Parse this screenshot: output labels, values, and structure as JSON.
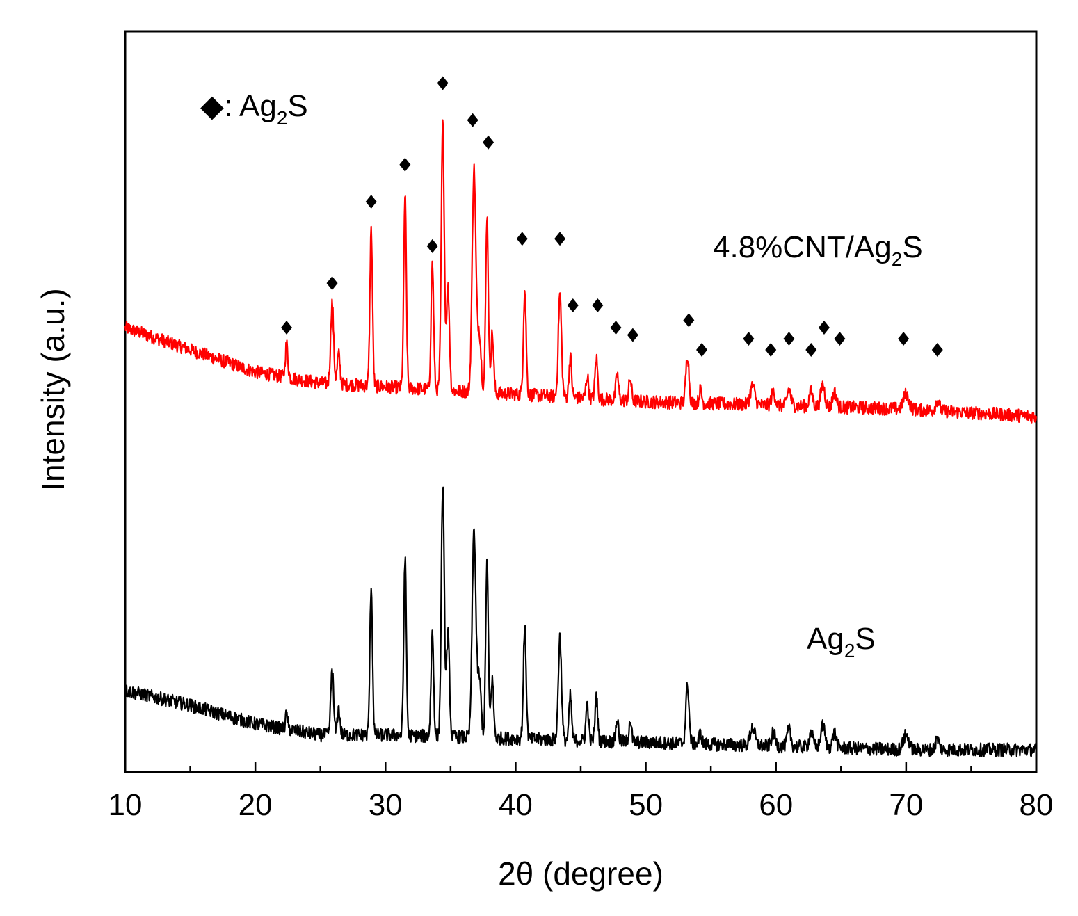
{
  "chart_data": {
    "type": "line",
    "title": "",
    "xlabel": "2θ (degree)",
    "ylabel": "Intensity (a.u.)",
    "xlim": [
      10,
      80
    ],
    "ylim": [
      0,
      100
    ],
    "xticks": [
      "10",
      "20",
      "30",
      "40",
      "50",
      "60",
      "70",
      "80"
    ],
    "yticks_shown": false,
    "grid": false,
    "legend": {
      "position": "top-left",
      "marker": "◆",
      "text_main": ": Ag",
      "text_sub": "2",
      "text_tail": "S"
    },
    "series": [
      {
        "name": "4.8%CNT/Ag2S",
        "label_main": "4.8%CNT/Ag",
        "label_sub": "2",
        "label_tail": "S",
        "color": "#ff0000",
        "baseline": [
          [
            10,
            60
          ],
          [
            15,
            57
          ],
          [
            20,
            54
          ],
          [
            25,
            52.5
          ],
          [
            30,
            52
          ],
          [
            40,
            51
          ],
          [
            50,
            50
          ],
          [
            60,
            49.5
          ],
          [
            70,
            49
          ],
          [
            80,
            48
          ]
        ],
        "peaks": [
          {
            "x": 22.4,
            "h": 4.5,
            "w": 0.14
          },
          {
            "x": 25.9,
            "h": 11,
            "w": 0.16
          },
          {
            "x": 26.4,
            "h": 4,
            "w": 0.15
          },
          {
            "x": 28.9,
            "h": 21,
            "w": 0.14
          },
          {
            "x": 31.5,
            "h": 26,
            "w": 0.14
          },
          {
            "x": 33.6,
            "h": 17,
            "w": 0.14
          },
          {
            "x": 34.4,
            "h": 36,
            "w": 0.16
          },
          {
            "x": 34.8,
            "h": 14,
            "w": 0.16
          },
          {
            "x": 36.8,
            "h": 30,
            "w": 0.2
          },
          {
            "x": 37.2,
            "h": 8,
            "w": 0.2
          },
          {
            "x": 37.8,
            "h": 24,
            "w": 0.14
          },
          {
            "x": 38.2,
            "h": 8,
            "w": 0.15
          },
          {
            "x": 40.7,
            "h": 14,
            "w": 0.15
          },
          {
            "x": 43.4,
            "h": 14,
            "w": 0.17
          },
          {
            "x": 44.2,
            "h": 5.5,
            "w": 0.14
          },
          {
            "x": 45.5,
            "h": 3,
            "w": 0.14
          },
          {
            "x": 46.2,
            "h": 5.5,
            "w": 0.14
          },
          {
            "x": 47.8,
            "h": 3.5,
            "w": 0.14
          },
          {
            "x": 48.8,
            "h": 3,
            "w": 0.14
          },
          {
            "x": 53.2,
            "h": 6.5,
            "w": 0.17
          },
          {
            "x": 54.2,
            "h": 1.8,
            "w": 0.14
          },
          {
            "x": 58.2,
            "h": 2.5,
            "w": 0.25
          },
          {
            "x": 59.8,
            "h": 1.8,
            "w": 0.2
          },
          {
            "x": 61.0,
            "h": 2.2,
            "w": 0.2
          },
          {
            "x": 62.7,
            "h": 2,
            "w": 0.2
          },
          {
            "x": 63.6,
            "h": 3,
            "w": 0.22
          },
          {
            "x": 64.5,
            "h": 2,
            "w": 0.2
          },
          {
            "x": 70.0,
            "h": 2,
            "w": 0.3
          },
          {
            "x": 72.4,
            "h": 1.5,
            "w": 0.2
          }
        ],
        "markers_x": [
          22.4,
          25.9,
          28.9,
          31.5,
          33.6,
          34.4,
          36.7,
          37.9,
          40.5,
          43.4,
          44.4,
          46.3,
          47.7,
          49.0,
          53.3,
          54.3,
          57.9,
          59.6,
          61.0,
          62.7,
          63.7,
          64.9,
          69.8,
          72.4
        ],
        "markers_y": [
          60,
          66,
          77,
          82,
          71,
          93,
          88,
          85,
          72,
          72,
          63,
          63,
          60,
          59,
          61,
          57,
          58.5,
          57,
          58.5,
          57,
          60,
          58.5,
          58.5,
          57
        ]
      },
      {
        "name": "Ag2S",
        "label_main": "Ag",
        "label_sub": "2",
        "label_tail": "S",
        "color": "#000000",
        "baseline": [
          [
            10,
            11
          ],
          [
            15,
            9
          ],
          [
            20,
            6.5
          ],
          [
            25,
            5
          ],
          [
            30,
            5
          ],
          [
            40,
            4.5
          ],
          [
            50,
            4
          ],
          [
            60,
            3.5
          ],
          [
            70,
            3
          ],
          [
            80,
            3
          ]
        ],
        "peaks": [
          {
            "x": 22.4,
            "h": 2,
            "w": 0.12
          },
          {
            "x": 25.9,
            "h": 9,
            "w": 0.15
          },
          {
            "x": 26.4,
            "h": 3.5,
            "w": 0.15
          },
          {
            "x": 28.9,
            "h": 20,
            "w": 0.14
          },
          {
            "x": 31.5,
            "h": 24,
            "w": 0.14
          },
          {
            "x": 33.6,
            "h": 14,
            "w": 0.14
          },
          {
            "x": 34.4,
            "h": 34,
            "w": 0.16
          },
          {
            "x": 34.8,
            "h": 14,
            "w": 0.16
          },
          {
            "x": 36.8,
            "h": 28,
            "w": 0.2
          },
          {
            "x": 37.2,
            "h": 8,
            "w": 0.2
          },
          {
            "x": 37.8,
            "h": 24,
            "w": 0.14
          },
          {
            "x": 38.2,
            "h": 8,
            "w": 0.15
          },
          {
            "x": 40.7,
            "h": 15,
            "w": 0.15
          },
          {
            "x": 43.4,
            "h": 14,
            "w": 0.17
          },
          {
            "x": 44.2,
            "h": 6,
            "w": 0.14
          },
          {
            "x": 45.5,
            "h": 5,
            "w": 0.14
          },
          {
            "x": 46.2,
            "h": 6,
            "w": 0.14
          },
          {
            "x": 47.8,
            "h": 3,
            "w": 0.14
          },
          {
            "x": 48.8,
            "h": 3,
            "w": 0.14
          },
          {
            "x": 53.2,
            "h": 8,
            "w": 0.17
          },
          {
            "x": 54.2,
            "h": 1.5,
            "w": 0.14
          },
          {
            "x": 58.2,
            "h": 2.5,
            "w": 0.25
          },
          {
            "x": 59.8,
            "h": 1.8,
            "w": 0.2
          },
          {
            "x": 61.0,
            "h": 2.2,
            "w": 0.2
          },
          {
            "x": 62.7,
            "h": 2,
            "w": 0.2
          },
          {
            "x": 63.6,
            "h": 3,
            "w": 0.22
          },
          {
            "x": 64.5,
            "h": 2,
            "w": 0.2
          },
          {
            "x": 70.0,
            "h": 2,
            "w": 0.3
          },
          {
            "x": 72.4,
            "h": 1.5,
            "w": 0.2
          }
        ]
      }
    ]
  }
}
